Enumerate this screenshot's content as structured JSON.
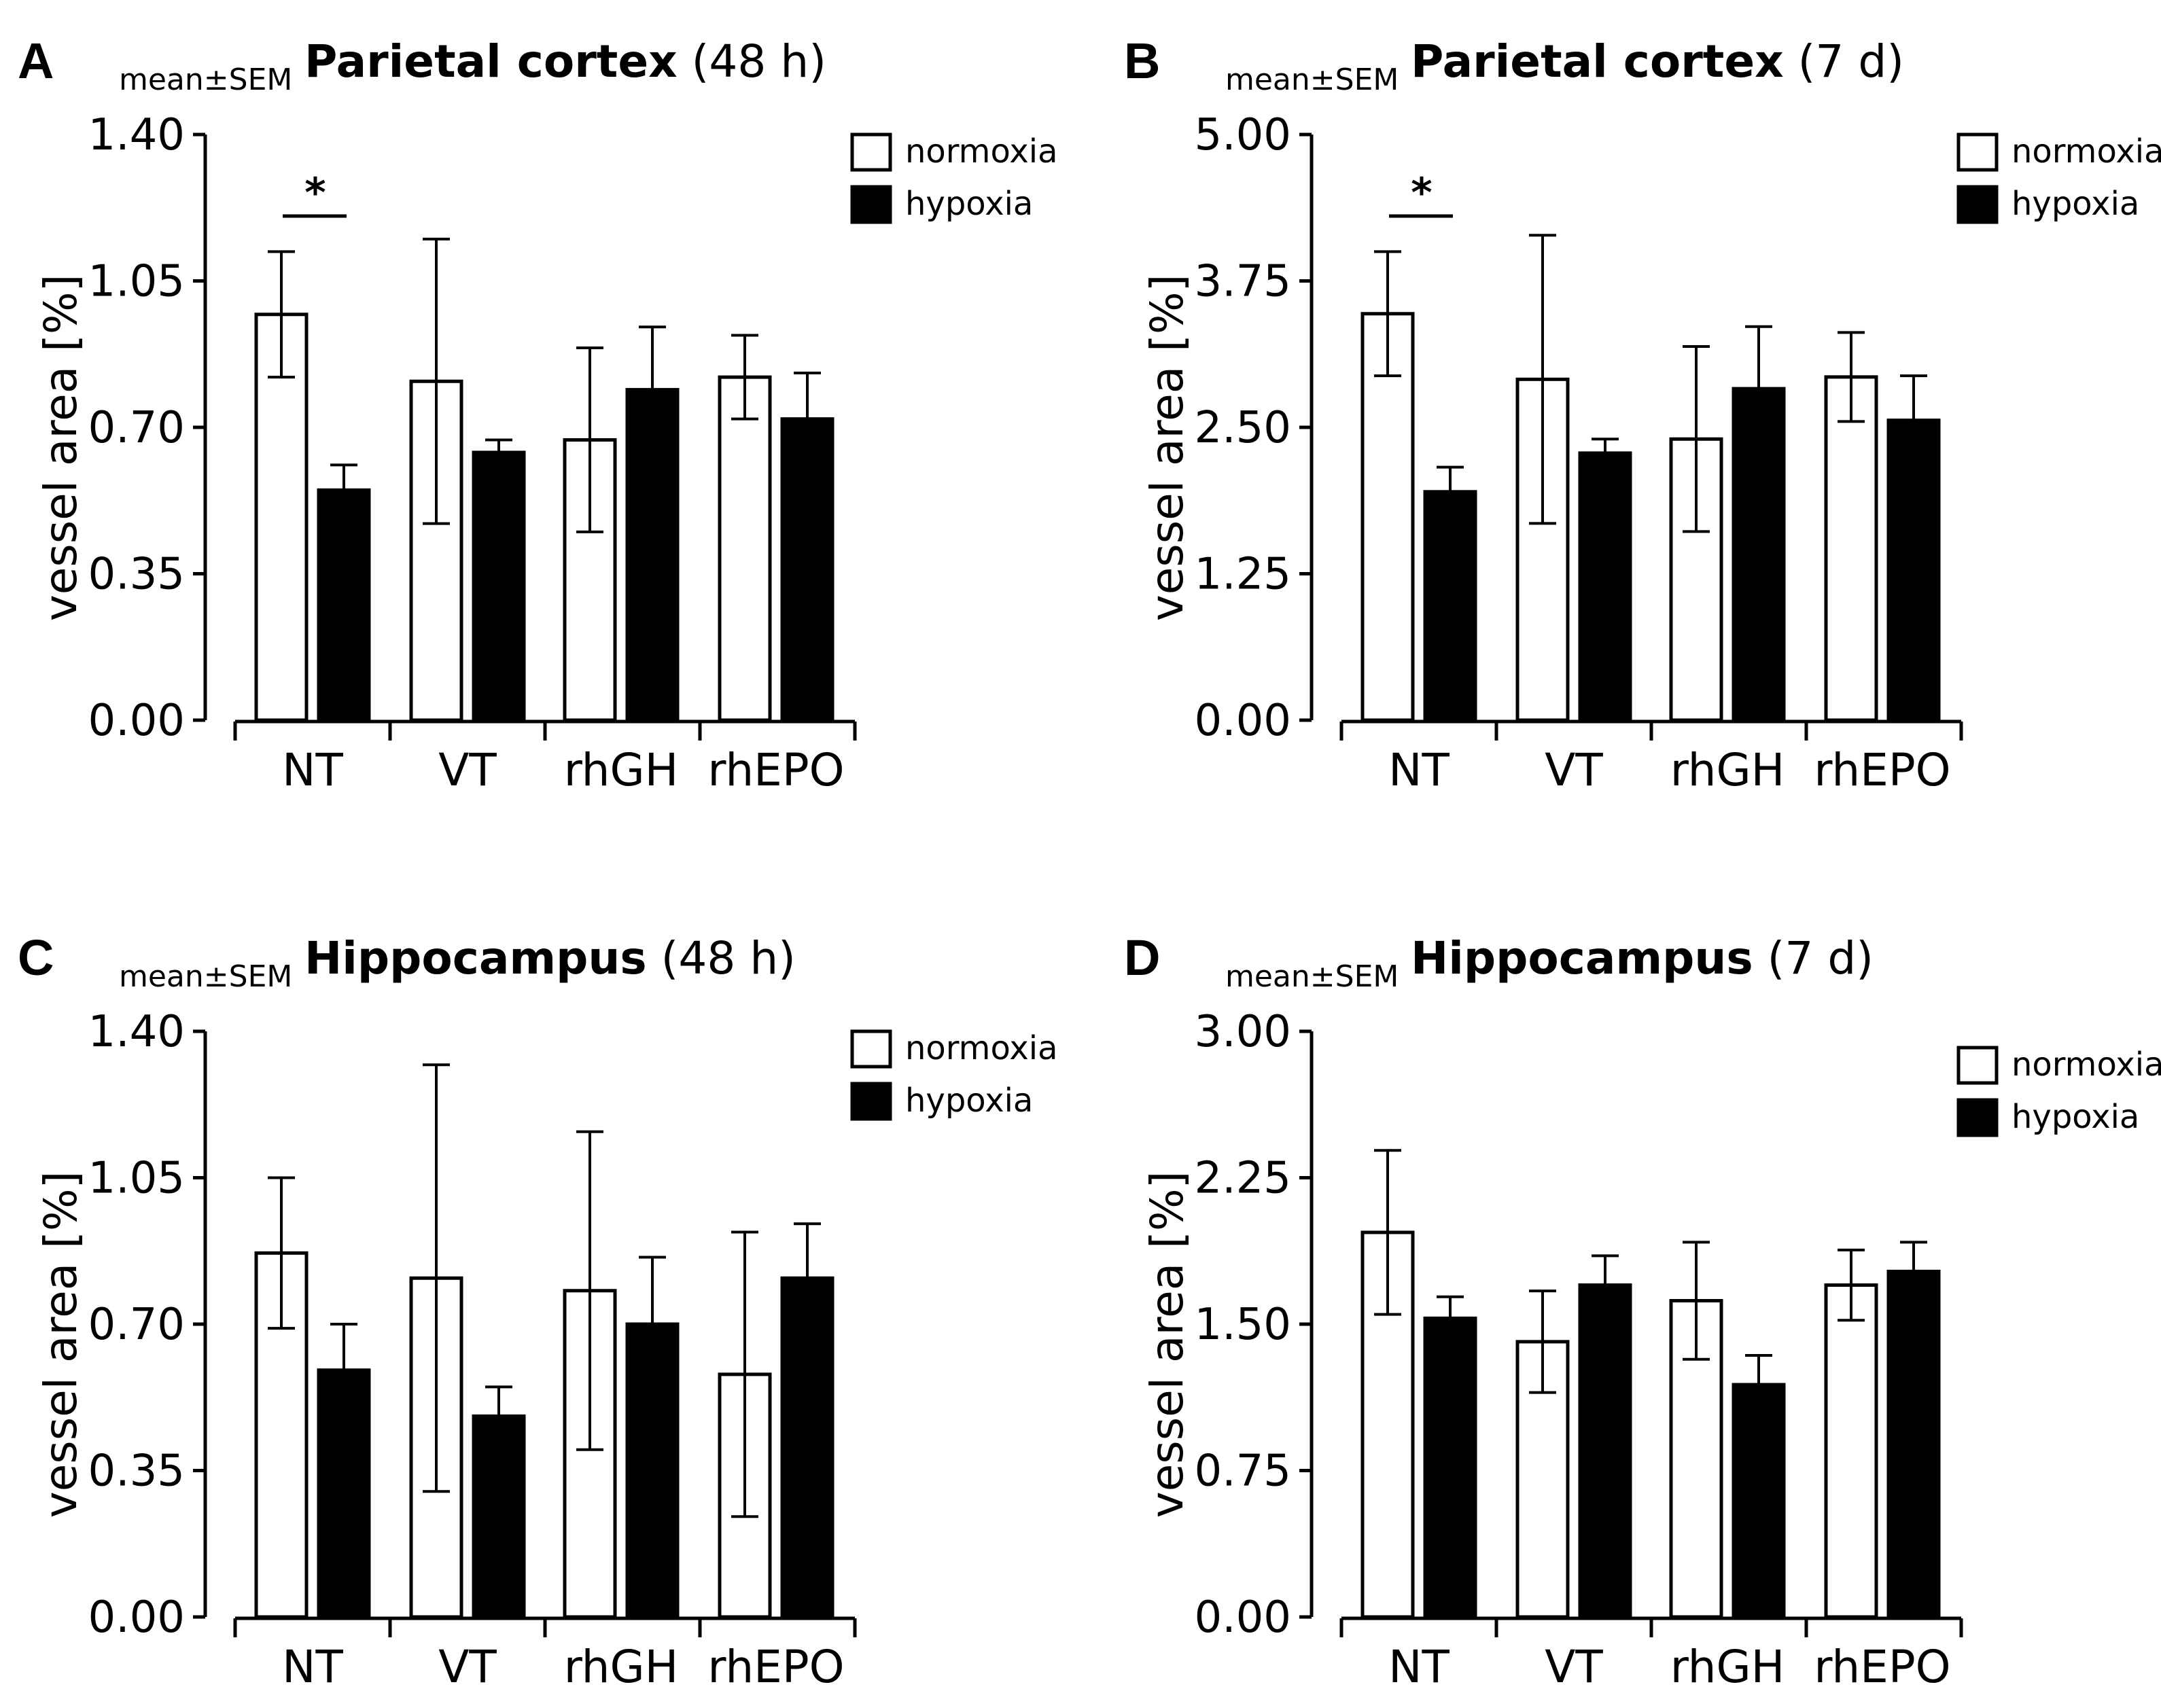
{
  "legend": {
    "normoxia": "normoxia",
    "hypoxia": "hypoxia"
  },
  "colors": {
    "normoxia_fill": "#ffffff",
    "hypoxia_fill": "#000000",
    "stroke": "#000000"
  },
  "chart_data": [
    {
      "id": "A",
      "type": "bar",
      "panel_letter": "A",
      "stat_label": "mean±SEM",
      "title_bold": "Parietal cortex",
      "title_suffix": " (48 h)",
      "ylabel": "vessel area [%]",
      "ylim": [
        0,
        1.4
      ],
      "yticks": [
        "0.00",
        "0.35",
        "0.70",
        "1.05",
        "1.40"
      ],
      "categories": [
        "NT",
        "VT",
        "rhGH",
        "rhEPO"
      ],
      "series": [
        {
          "name": "normoxia",
          "values": [
            0.97,
            0.81,
            0.67,
            0.82
          ],
          "err": [
            0.15,
            0.34,
            0.22,
            0.1
          ]
        },
        {
          "name": "hypoxia",
          "values": [
            0.55,
            0.64,
            0.79,
            0.72
          ],
          "err": [
            0.06,
            0.03,
            0.15,
            0.11
          ]
        }
      ],
      "significance": [
        {
          "category": "NT",
          "label": "*"
        }
      ]
    },
    {
      "id": "B",
      "type": "bar",
      "panel_letter": "B",
      "stat_label": "mean±SEM",
      "title_bold": "Parietal cortex",
      "title_suffix": " (7 d)",
      "ylabel": "vessel area [%]",
      "ylim": [
        0,
        5
      ],
      "yticks": [
        "0.00",
        "1.25",
        "2.50",
        "3.75",
        "5.00"
      ],
      "categories": [
        "NT",
        "VT",
        "rhGH",
        "rhEPO"
      ],
      "series": [
        {
          "name": "normoxia",
          "values": [
            3.47,
            2.91,
            2.4,
            2.93
          ],
          "err": [
            0.53,
            1.23,
            0.79,
            0.38
          ]
        },
        {
          "name": "hypoxia",
          "values": [
            1.95,
            2.28,
            2.83,
            2.56
          ],
          "err": [
            0.21,
            0.12,
            0.53,
            0.38
          ]
        }
      ],
      "significance": [
        {
          "category": "NT",
          "label": "*"
        }
      ]
    },
    {
      "id": "C",
      "type": "bar",
      "panel_letter": "C",
      "stat_label": "mean±SEM",
      "title_bold": "Hippocampus",
      "title_suffix": " (48 h)",
      "ylabel": "vessel area [%]",
      "ylim": [
        0,
        1.4
      ],
      "yticks": [
        "0.00",
        "0.35",
        "0.70",
        "1.05",
        "1.40"
      ],
      "categories": [
        "NT",
        "VT",
        "rhGH",
        "rhEPO"
      ],
      "series": [
        {
          "name": "normoxia",
          "values": [
            0.87,
            0.81,
            0.78,
            0.58
          ],
          "err": [
            0.18,
            0.51,
            0.38,
            0.34
          ]
        },
        {
          "name": "hypoxia",
          "values": [
            0.59,
            0.48,
            0.7,
            0.81
          ],
          "err": [
            0.11,
            0.07,
            0.16,
            0.13
          ]
        }
      ],
      "significance": []
    },
    {
      "id": "D",
      "type": "bar",
      "panel_letter": "D",
      "stat_label": "mean±SEM",
      "title_bold": "Hippocampus",
      "title_suffix": " (7 d)",
      "ylabel": "vessel area [%]",
      "ylim": [
        0,
        3
      ],
      "yticks": [
        "0.00",
        "0.75",
        "1.50",
        "2.25",
        "3.00"
      ],
      "categories": [
        "NT",
        "VT",
        "rhGH",
        "rhEPO"
      ],
      "series": [
        {
          "name": "normoxia",
          "values": [
            1.97,
            1.41,
            1.62,
            1.7
          ],
          "err": [
            0.42,
            0.26,
            0.3,
            0.18
          ]
        },
        {
          "name": "hypoxia",
          "values": [
            1.53,
            1.7,
            1.19,
            1.77
          ],
          "err": [
            0.11,
            0.15,
            0.15,
            0.15
          ]
        }
      ],
      "significance": []
    }
  ]
}
